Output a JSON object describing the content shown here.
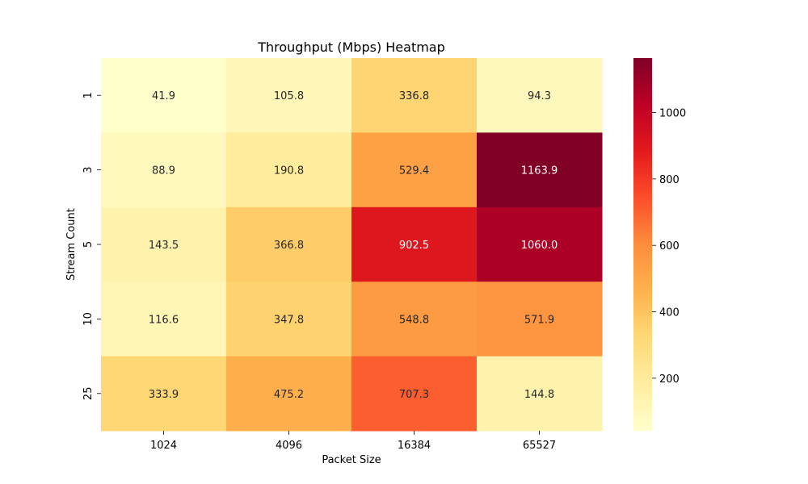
{
  "chart_data": {
    "type": "heatmap",
    "title": "Throughput (Mbps) Heatmap",
    "xlabel": "Packet Size",
    "ylabel": "Stream Count",
    "x_categories": [
      "1024",
      "4096",
      "16384",
      "65527"
    ],
    "y_categories": [
      "1",
      "3",
      "5",
      "10",
      "25"
    ],
    "values": [
      [
        41.9,
        105.8,
        336.8,
        94.3
      ],
      [
        88.9,
        190.8,
        529.4,
        1163.9
      ],
      [
        143.5,
        366.8,
        902.5,
        1060.0
      ],
      [
        116.6,
        347.8,
        548.8,
        571.9
      ],
      [
        333.9,
        475.2,
        707.3,
        144.8
      ]
    ],
    "value_format": "0.1f",
    "colormap": "YlOrRd",
    "color_range": [
      41.9,
      1163.9
    ],
    "colorbar_ticks": [
      200,
      400,
      600,
      800,
      1000
    ],
    "colorbar_tick_labels": [
      "200",
      "400",
      "600",
      "800",
      "1000"
    ],
    "grid": false,
    "legend": "colorbar-right"
  }
}
